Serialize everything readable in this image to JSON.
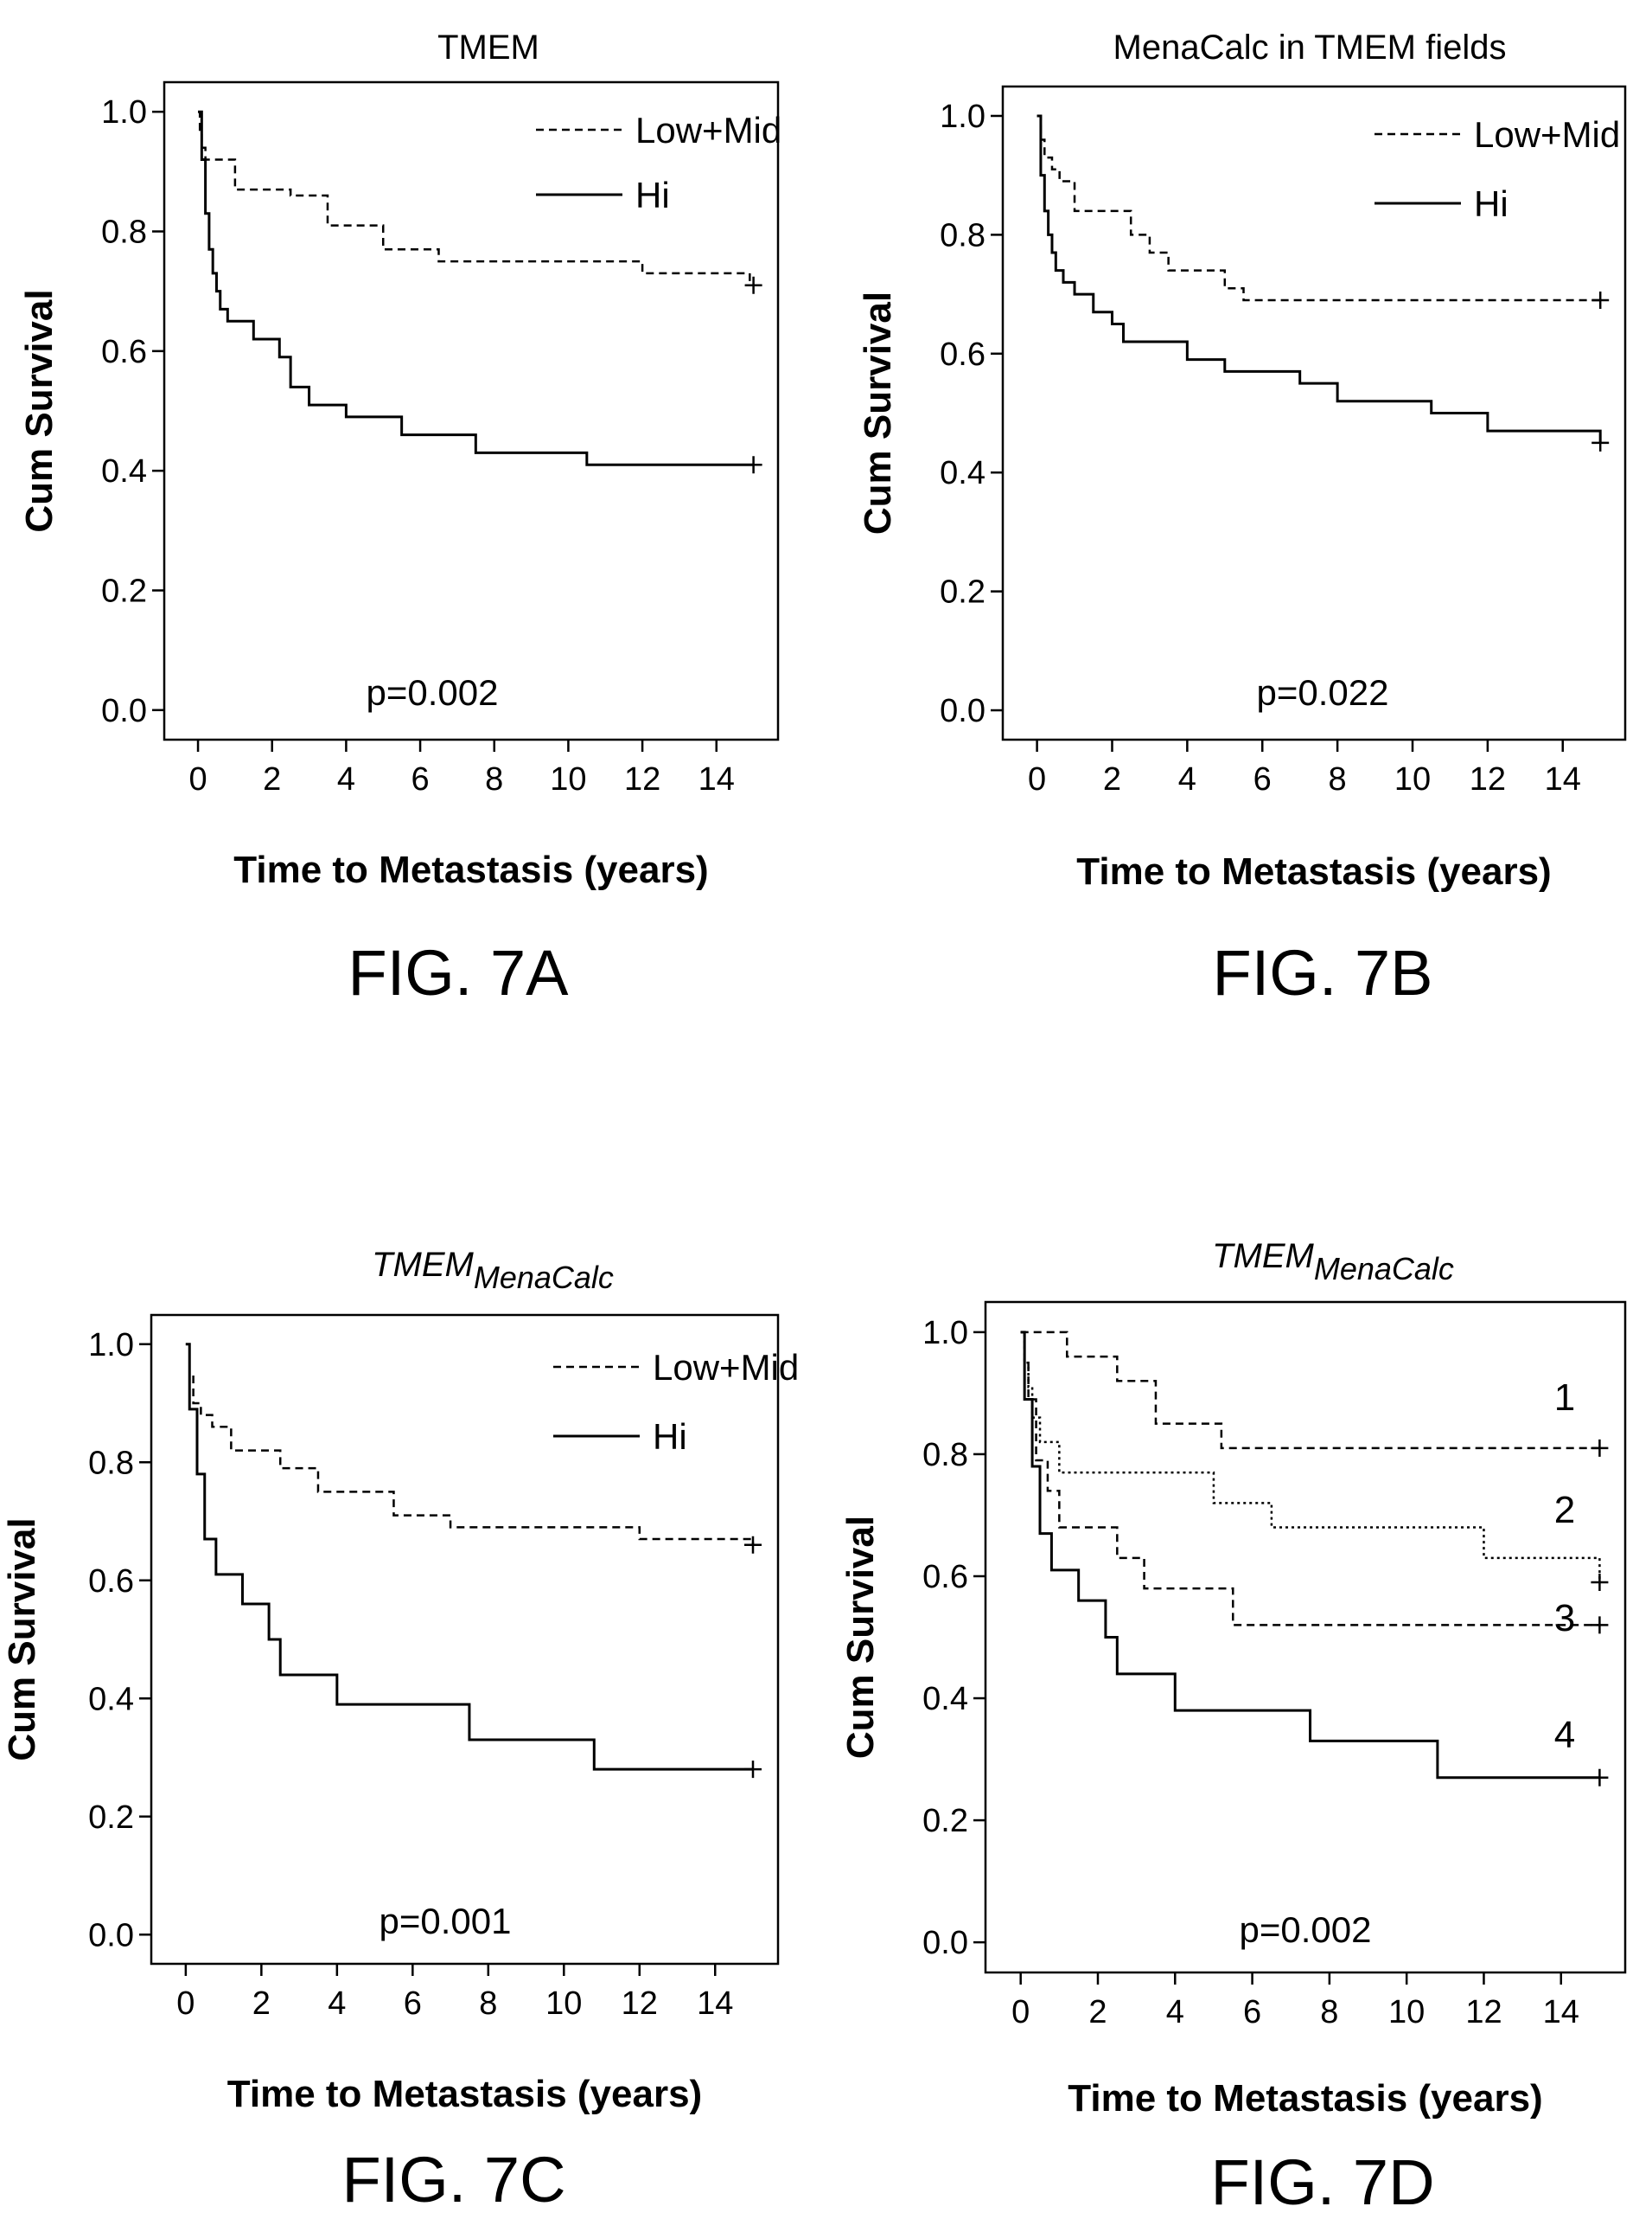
{
  "figures": [
    {
      "chart_data": {
        "type": "line",
        "title": "TMEM",
        "title_sub": "",
        "xlabel": "Time to Metastasis (years)",
        "ylabel": "Cum Survival",
        "xlim": [
          0,
          15
        ],
        "ylim": [
          0,
          1
        ],
        "x_ticks": [
          "0",
          "2",
          "4",
          "6",
          "8",
          "10",
          "12",
          "14"
        ],
        "y_ticks": [
          "0.0",
          "0.2",
          "0.4",
          "0.6",
          "0.8",
          "1.0"
        ],
        "legend_position": "top-right",
        "annotation": "p=0.002",
        "series": [
          {
            "name": "Low+Mid",
            "style": "dashed",
            "x": [
              0,
              0.05,
              0.1,
              0.2,
              0.4,
              1.0,
              2.5,
              3.5,
              5.0,
              6.5,
              7.5,
              12.0,
              14.9,
              15.0
            ],
            "y": [
              1.0,
              0.97,
              0.94,
              0.92,
              0.92,
              0.87,
              0.86,
              0.81,
              0.77,
              0.75,
              0.75,
              0.73,
              0.71,
              0.71
            ]
          },
          {
            "name": "Hi",
            "style": "solid",
            "x": [
              0,
              0.1,
              0.2,
              0.3,
              0.4,
              0.5,
              0.6,
              0.8,
              1.0,
              1.5,
              2.2,
              2.5,
              3.0,
              4.0,
              5.5,
              7.5,
              10.5,
              15.0
            ],
            "y": [
              1.0,
              0.92,
              0.83,
              0.77,
              0.73,
              0.7,
              0.67,
              0.65,
              0.65,
              0.62,
              0.59,
              0.54,
              0.51,
              0.49,
              0.46,
              0.43,
              0.41,
              0.41
            ]
          }
        ]
      },
      "caption": "FIG. 7A"
    },
    {
      "chart_data": {
        "type": "line",
        "title": "MenaCalc in TMEM fields",
        "title_sub": "",
        "xlabel": "Time to Metastasis (years)",
        "ylabel": "Cum Survival",
        "xlim": [
          0,
          15
        ],
        "ylim": [
          0,
          1
        ],
        "x_ticks": [
          "0",
          "2",
          "4",
          "6",
          "8",
          "10",
          "12",
          "14"
        ],
        "y_ticks": [
          "0.0",
          "0.2",
          "0.4",
          "0.6",
          "0.8",
          "1.0"
        ],
        "legend_position": "top-right",
        "annotation": "p=0.022",
        "series": [
          {
            "name": "Low+Mid",
            "style": "dashed",
            "x": [
              0,
              0.1,
              0.2,
              0.4,
              0.6,
              1.0,
              2.0,
              2.5,
              3.0,
              3.5,
              5.0,
              5.5,
              15.0
            ],
            "y": [
              1.0,
              0.96,
              0.93,
              0.91,
              0.89,
              0.84,
              0.84,
              0.8,
              0.77,
              0.74,
              0.71,
              0.69,
              0.69
            ]
          },
          {
            "name": "Hi",
            "style": "solid",
            "x": [
              0,
              0.1,
              0.2,
              0.3,
              0.4,
              0.5,
              0.7,
              1.0,
              1.5,
              2.0,
              2.3,
              4.0,
              5.0,
              7.0,
              8.0,
              10.5,
              12.0,
              15.0
            ],
            "y": [
              1.0,
              0.9,
              0.84,
              0.8,
              0.77,
              0.74,
              0.72,
              0.7,
              0.67,
              0.65,
              0.62,
              0.59,
              0.57,
              0.55,
              0.52,
              0.5,
              0.47,
              0.45
            ]
          }
        ]
      },
      "caption": "FIG. 7B"
    },
    {
      "chart_data": {
        "type": "line",
        "title": "TMEM",
        "title_sub": "MenaCalc",
        "xlabel": "Time to Metastasis (years)",
        "ylabel": "Cum Survival",
        "xlim": [
          0,
          15
        ],
        "ylim": [
          0,
          1
        ],
        "x_ticks": [
          "0",
          "2",
          "4",
          "6",
          "8",
          "10",
          "12",
          "14"
        ],
        "y_ticks": [
          "0.0",
          "0.2",
          "0.4",
          "0.6",
          "0.8",
          "1.0"
        ],
        "legend_position": "top-right",
        "annotation": "p=0.001",
        "series": [
          {
            "name": "Low+Mid",
            "style": "dashed",
            "x": [
              0,
              0.1,
              0.2,
              0.4,
              0.7,
              1.2,
              2.5,
              3.5,
              5.5,
              7.0,
              12.0,
              15.0
            ],
            "y": [
              1.0,
              0.95,
              0.9,
              0.88,
              0.86,
              0.82,
              0.79,
              0.75,
              0.71,
              0.69,
              0.67,
              0.66
            ]
          },
          {
            "name": "Hi",
            "style": "solid",
            "x": [
              0,
              0.1,
              0.3,
              0.5,
              0.8,
              1.5,
              2.2,
              2.5,
              4.0,
              5.5,
              7.5,
              10.8,
              15.0
            ],
            "y": [
              1.0,
              0.89,
              0.78,
              0.67,
              0.61,
              0.56,
              0.5,
              0.44,
              0.39,
              0.39,
              0.33,
              0.28,
              0.28
            ]
          }
        ]
      },
      "caption": "FIG. 7C"
    },
    {
      "chart_data": {
        "type": "line",
        "title": "TMEM",
        "title_sub": "MenaCalc",
        "xlabel": "Time to Metastasis (years)",
        "ylabel": "Cum Survival",
        "xlim": [
          0,
          15
        ],
        "ylim": [
          0,
          1
        ],
        "x_ticks": [
          "0",
          "2",
          "4",
          "6",
          "8",
          "10",
          "12",
          "14"
        ],
        "y_ticks": [
          "0.0",
          "0.2",
          "0.4",
          "0.6",
          "0.8",
          "1.0"
        ],
        "legend_position": "none",
        "annotation": "p=0.002",
        "series": [
          {
            "name": "1",
            "style": "dashed",
            "x": [
              0,
              1.2,
              2.5,
              3.5,
              5.2,
              15.0
            ],
            "y": [
              1.0,
              0.96,
              0.92,
              0.85,
              0.81,
              0.81
            ]
          },
          {
            "name": "2",
            "style": "dotted",
            "x": [
              0,
              0.1,
              0.2,
              0.3,
              0.5,
              1.0,
              5.0,
              6.5,
              12.0,
              15.0
            ],
            "y": [
              1.0,
              0.95,
              0.91,
              0.86,
              0.82,
              0.77,
              0.72,
              0.68,
              0.63,
              0.59
            ]
          },
          {
            "name": "3",
            "style": "dashed",
            "x": [
              0,
              0.1,
              0.2,
              0.4,
              0.7,
              1.0,
              2.5,
              3.2,
              5.5,
              15.0
            ],
            "y": [
              1.0,
              0.95,
              0.89,
              0.79,
              0.74,
              0.68,
              0.63,
              0.58,
              0.52,
              0.52
            ]
          },
          {
            "name": "4",
            "style": "solid",
            "x": [
              0,
              0.1,
              0.3,
              0.5,
              0.8,
              1.5,
              2.2,
              2.5,
              4.0,
              7.5,
              10.8,
              15.0
            ],
            "y": [
              1.0,
              0.89,
              0.78,
              0.67,
              0.61,
              0.56,
              0.5,
              0.44,
              0.38,
              0.33,
              0.27,
              0.27
            ]
          }
        ]
      },
      "caption": "FIG. 7D"
    }
  ]
}
